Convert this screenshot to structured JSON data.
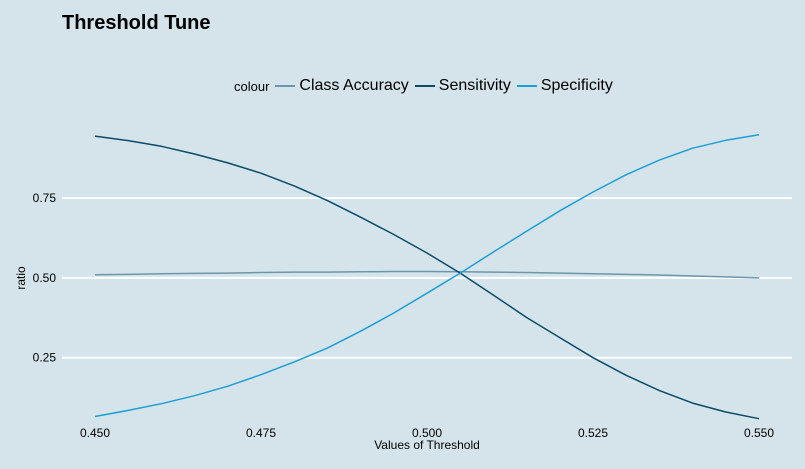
{
  "chart_data": {
    "type": "line",
    "title": "Threshold Tune",
    "xlabel": "Values of Threshold",
    "ylabel": "ratio",
    "xlim": [
      0.45,
      0.55
    ],
    "ylim": [
      0.055,
      0.96
    ],
    "x_ticks": [
      "0.450",
      "0.475",
      "0.500",
      "0.525",
      "0.550"
    ],
    "x_tick_values": [
      0.45,
      0.475,
      0.5,
      0.525,
      0.55
    ],
    "y_ticks": [
      "0.25",
      "0.50",
      "0.75"
    ],
    "y_tick_values": [
      0.25,
      0.5,
      0.75
    ],
    "grid": "horizontal",
    "legend": {
      "title": "colour",
      "position": "top"
    },
    "x": [
      0.45,
      0.455,
      0.46,
      0.465,
      0.47,
      0.475,
      0.48,
      0.485,
      0.49,
      0.495,
      0.5,
      0.505,
      0.51,
      0.515,
      0.52,
      0.525,
      0.53,
      0.535,
      0.54,
      0.545,
      0.55
    ],
    "series": [
      {
        "name": "Class Accuracy",
        "color": "#6c96ab",
        "values": [
          0.51,
          0.511,
          0.513,
          0.514,
          0.515,
          0.517,
          0.518,
          0.518,
          0.519,
          0.52,
          0.52,
          0.519,
          0.518,
          0.517,
          0.515,
          0.513,
          0.511,
          0.509,
          0.506,
          0.503,
          0.5
        ]
      },
      {
        "name": "Sensitivity",
        "color": "#0b4b6a",
        "values": [
          0.944,
          0.93,
          0.912,
          0.888,
          0.86,
          0.828,
          0.788,
          0.742,
          0.69,
          0.636,
          0.578,
          0.515,
          0.446,
          0.376,
          0.313,
          0.25,
          0.195,
          0.147,
          0.108,
          0.08,
          0.059
        ]
      },
      {
        "name": "Specificity",
        "color": "#1d9fd6",
        "values": [
          0.066,
          0.085,
          0.106,
          0.131,
          0.161,
          0.197,
          0.237,
          0.28,
          0.333,
          0.39,
          0.452,
          0.515,
          0.581,
          0.646,
          0.71,
          0.769,
          0.823,
          0.869,
          0.906,
          0.931,
          0.948
        ]
      }
    ]
  }
}
